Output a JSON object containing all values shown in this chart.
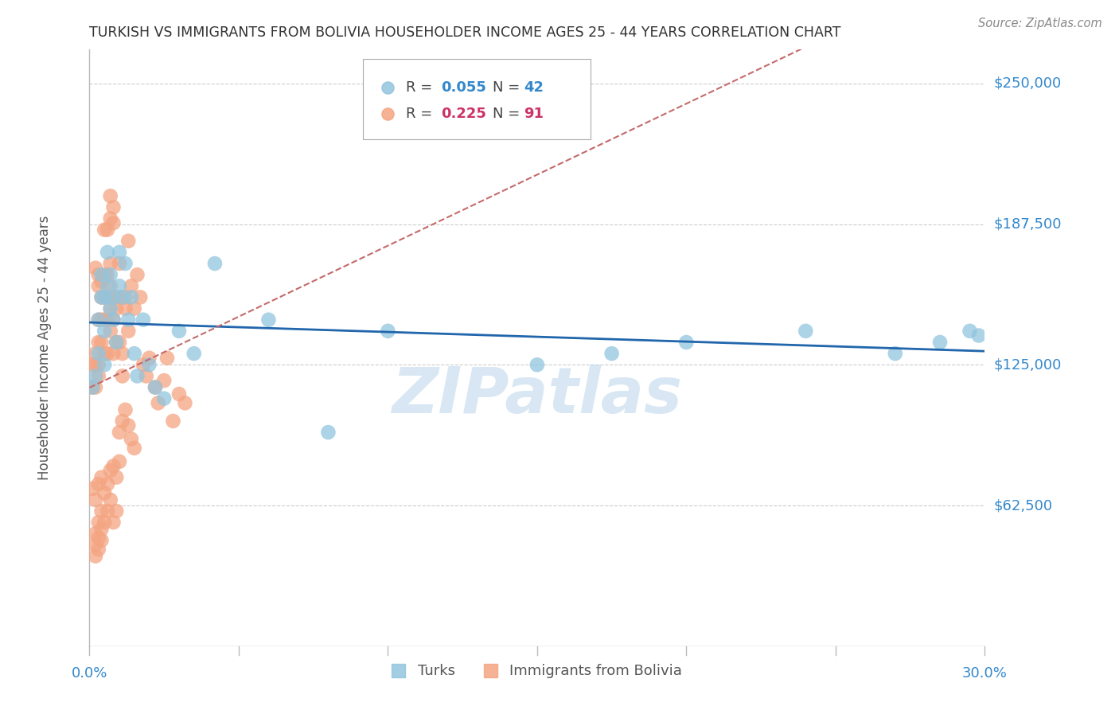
{
  "title": "TURKISH VS IMMIGRANTS FROM BOLIVIA HOUSEHOLDER INCOME AGES 25 - 44 YEARS CORRELATION CHART",
  "source": "Source: ZipAtlas.com",
  "ylabel": "Householder Income Ages 25 - 44 years",
  "ytick_labels": [
    "$250,000",
    "$187,500",
    "$125,000",
    "$62,500"
  ],
  "ytick_values": [
    250000,
    187500,
    125000,
    62500
  ],
  "xmin": 0.0,
  "xmax": 0.3,
  "ymin": 0,
  "ymax": 265000,
  "watermark": "ZIPatlas",
  "turk_color": "#92c5de",
  "bolivia_color": "#f4a582",
  "turk_line_color": "#2166ac",
  "bolivia_line_color": "#c46a6a",
  "grid_color": "#cccccc",
  "turks_x": [
    0.001,
    0.002,
    0.003,
    0.003,
    0.004,
    0.004,
    0.005,
    0.005,
    0.005,
    0.006,
    0.006,
    0.007,
    0.007,
    0.008,
    0.008,
    0.009,
    0.01,
    0.01,
    0.011,
    0.012,
    0.013,
    0.014,
    0.015,
    0.016,
    0.018,
    0.02,
    0.022,
    0.025,
    0.03,
    0.035,
    0.042,
    0.06,
    0.08,
    0.1,
    0.15,
    0.175,
    0.2,
    0.24,
    0.27,
    0.285,
    0.295,
    0.298
  ],
  "turks_y": [
    115000,
    120000,
    130000,
    145000,
    155000,
    165000,
    140000,
    155000,
    125000,
    160000,
    175000,
    150000,
    165000,
    155000,
    145000,
    135000,
    160000,
    175000,
    155000,
    170000,
    145000,
    155000,
    130000,
    120000,
    145000,
    125000,
    115000,
    110000,
    140000,
    130000,
    170000,
    145000,
    95000,
    140000,
    125000,
    130000,
    135000,
    140000,
    130000,
    135000,
    140000,
    138000
  ],
  "bolivia_x": [
    0.001,
    0.001,
    0.002,
    0.002,
    0.002,
    0.003,
    0.003,
    0.003,
    0.003,
    0.004,
    0.004,
    0.004,
    0.005,
    0.005,
    0.005,
    0.005,
    0.006,
    0.006,
    0.006,
    0.006,
    0.007,
    0.007,
    0.007,
    0.007,
    0.008,
    0.008,
    0.008,
    0.009,
    0.009,
    0.01,
    0.01,
    0.01,
    0.011,
    0.011,
    0.012,
    0.012,
    0.013,
    0.013,
    0.014,
    0.015,
    0.016,
    0.017,
    0.018,
    0.019,
    0.02,
    0.022,
    0.023,
    0.025,
    0.026,
    0.028,
    0.03,
    0.032,
    0.001,
    0.002,
    0.003,
    0.004,
    0.005,
    0.006,
    0.007,
    0.008,
    0.009,
    0.01,
    0.002,
    0.003,
    0.004,
    0.002,
    0.003,
    0.004,
    0.002,
    0.003,
    0.004,
    0.005,
    0.006,
    0.007,
    0.008,
    0.009,
    0.01,
    0.011,
    0.012,
    0.013,
    0.014,
    0.015,
    0.007,
    0.008,
    0.005,
    0.006,
    0.007,
    0.008,
    0.003,
    0.004,
    0.002,
    0.003
  ],
  "bolivia_y": [
    125000,
    115000,
    130000,
    115000,
    125000,
    145000,
    135000,
    125000,
    120000,
    155000,
    145000,
    135000,
    165000,
    155000,
    145000,
    130000,
    165000,
    155000,
    145000,
    130000,
    170000,
    160000,
    150000,
    140000,
    155000,
    145000,
    130000,
    150000,
    135000,
    155000,
    170000,
    135000,
    130000,
    120000,
    150000,
    155000,
    180000,
    140000,
    160000,
    150000,
    165000,
    155000,
    125000,
    120000,
    128000,
    115000,
    108000,
    118000,
    128000,
    100000,
    112000,
    108000,
    70000,
    65000,
    72000,
    75000,
    68000,
    72000,
    78000,
    80000,
    75000,
    82000,
    50000,
    55000,
    60000,
    45000,
    48000,
    52000,
    40000,
    43000,
    47000,
    55000,
    60000,
    65000,
    55000,
    60000,
    95000,
    100000,
    105000,
    98000,
    92000,
    88000,
    200000,
    195000,
    185000,
    185000,
    190000,
    188000,
    160000,
    162000,
    168000,
    165000
  ]
}
